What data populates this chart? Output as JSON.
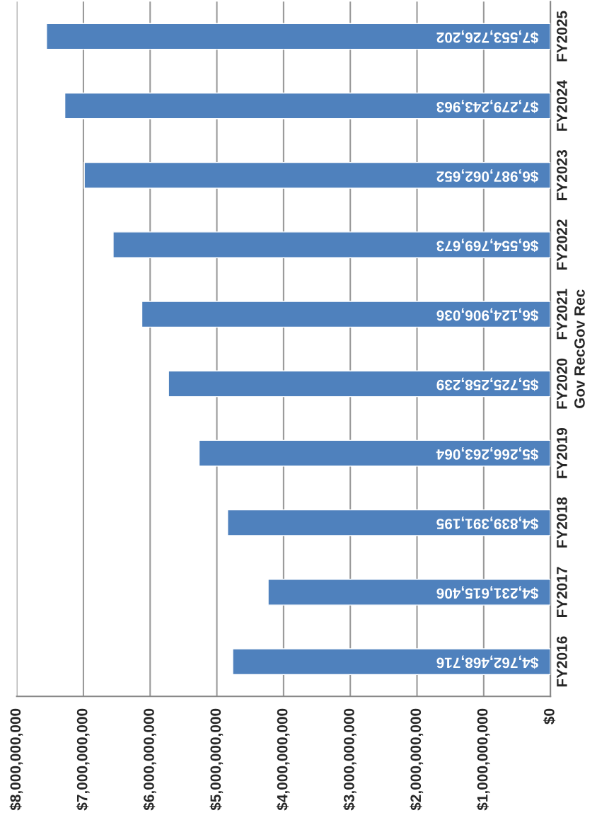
{
  "chart_data": {
    "type": "bar",
    "orientation": "horizontal",
    "ylabel": "Gov RecGov Rec",
    "categories": [
      "FY2025",
      "FY2024",
      "FY2023",
      "FY2022",
      "FY2021",
      "FY2020",
      "FY2019",
      "FY2018",
      "FY2017",
      "FY2016"
    ],
    "values": [
      7553726202,
      7279243963,
      6987062652,
      6554769673,
      6124906036,
      5725258239,
      5266263064,
      4839391195,
      4231615406,
      4762468716
    ],
    "value_labels": [
      "$7,553,726,202",
      "$7,279,243,963",
      "$6,987,062,652",
      "$6,554,769,673",
      "$6,124,906,036",
      "$5,725,258,239",
      "$5,266,263,064",
      "$4,839,391,195",
      "$4,231,615,406",
      "$4,762,468,716"
    ],
    "color": "#4f81bd",
    "xlim": [
      8000000000,
      0
    ],
    "xticks": [
      {
        "value": 8000000000,
        "label": "$8,000,000,000"
      },
      {
        "value": 7000000000,
        "label": "$7,000,000,000"
      },
      {
        "value": 6000000000,
        "label": "$6,000,000,000"
      },
      {
        "value": 5000000000,
        "label": "$5,000,000,000"
      },
      {
        "value": 4000000000,
        "label": "$4,000,000,000"
      },
      {
        "value": 3000000000,
        "label": "$3,000,000,000"
      },
      {
        "value": 2000000000,
        "label": "$2,000,000,000"
      },
      {
        "value": 1000000000,
        "label": "$1,000,000,000"
      },
      {
        "value": 0,
        "label": "$0"
      }
    ],
    "grid": "x",
    "legend": false
  }
}
